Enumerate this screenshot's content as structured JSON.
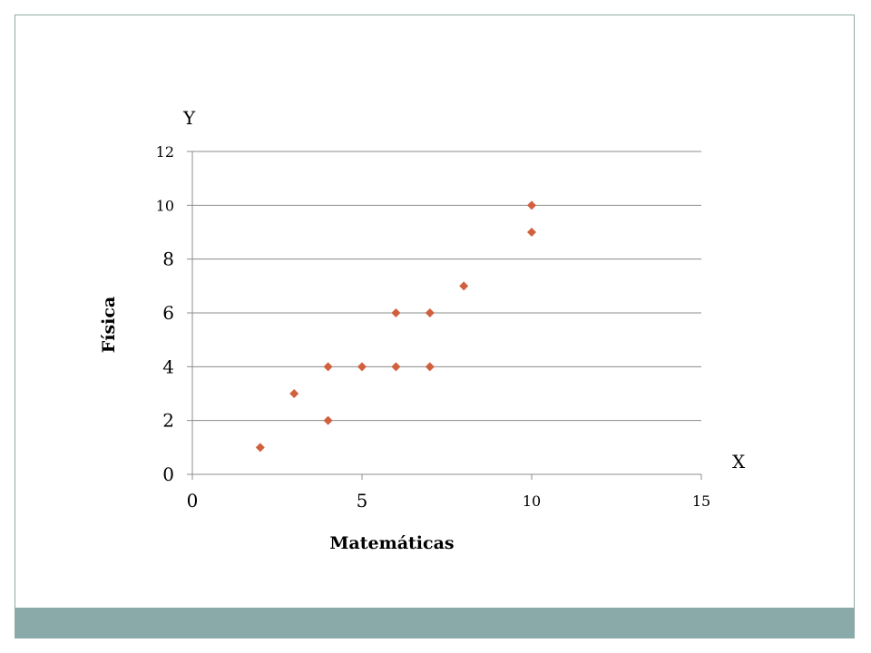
{
  "chart_data": {
    "type": "scatter",
    "title": "",
    "xlabel": "Matemáticas",
    "ylabel": "Física",
    "x_axis_letter": "X",
    "y_axis_letter": "Y",
    "xlim": [
      0,
      15
    ],
    "ylim": [
      0,
      12
    ],
    "x_ticks": [
      0,
      5,
      10,
      15
    ],
    "y_ticks": [
      0,
      2,
      4,
      6,
      8,
      10,
      12
    ],
    "grid": "horizontal",
    "legend": "none",
    "marker": "diamond",
    "marker_color": "#d0603e",
    "series": [
      {
        "x": [
          2,
          3,
          4,
          4,
          5,
          6,
          6,
          7,
          7,
          8,
          10,
          10
        ],
        "y": [
          1,
          3,
          2,
          4,
          4,
          4,
          6,
          4,
          6,
          7,
          9,
          10
        ]
      }
    ]
  },
  "colors": {
    "frame_border": "#8faaa8",
    "footer_bar": "#89aaa8",
    "grid": "#8c8c8c",
    "axis": "#8c8c8c"
  }
}
